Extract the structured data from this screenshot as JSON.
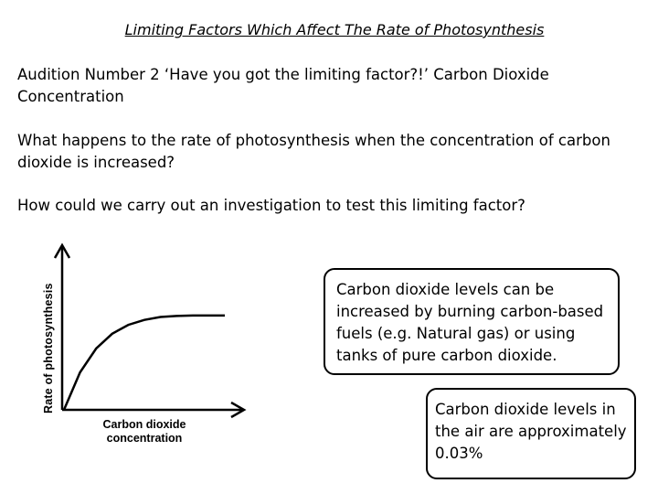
{
  "slide": {
    "title": "Limiting Factors Which Affect The Rate of Photosynthesis",
    "paragraphs": [
      "Audition Number 2  ‘Have you got the limiting factor?!’ Carbon Dioxide Concentration",
      "What happens to the rate of photosynthesis when the concentration of carbon dioxide is increased?",
      "How could we carry out an investigation to test this limiting factor?"
    ],
    "callouts": [
      "Carbon dioxide levels can be increased by burning carbon-based fuels (e.g. Natural gas) or using tanks of pure carbon dioxide.",
      "Carbon dioxide levels in the air are approximately 0.03%"
    ]
  },
  "chart_data": {
    "type": "line",
    "ylabel": "Rate of photosynthesis",
    "xlabel": "Carbon dioxide concentration",
    "ticks": "none",
    "grid": false,
    "legend": "none",
    "curve": "rises steeply from origin then levels off (plateau)",
    "x": [
      0,
      0.1,
      0.2,
      0.3,
      0.4,
      0.5,
      0.6,
      0.7,
      0.8,
      1.0
    ],
    "series": [
      {
        "values": [
          0,
          0.38,
          0.62,
          0.77,
          0.86,
          0.91,
          0.94,
          0.95,
          0.955,
          0.955
        ]
      }
    ],
    "colors": {
      "line": "#000000"
    }
  }
}
